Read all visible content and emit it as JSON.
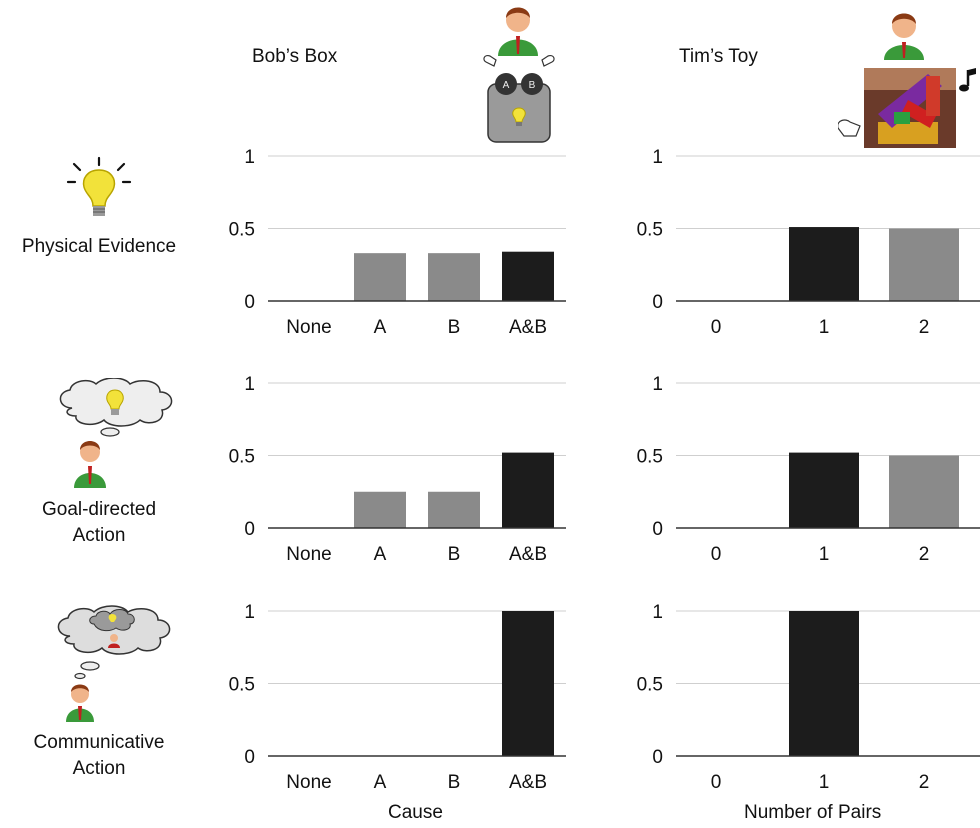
{
  "panels": {
    "left_title": "Bob’s Box",
    "right_title": "Tim’s Toy",
    "left_xlabel": "Cause",
    "right_xlabel": "Number of Pairs",
    "box_button_a": "A",
    "box_button_b": "B"
  },
  "rows": [
    {
      "label_lines": [
        "Physical Evidence"
      ],
      "icon": "lightbulb-icon"
    },
    {
      "label_lines": [
        "Goal-directed",
        "Action"
      ],
      "icon": "thought-bubble-person-icon"
    },
    {
      "label_lines": [
        "Communicative",
        "Action"
      ],
      "icon": "nested-thought-bubble-person-icon"
    }
  ],
  "colors": {
    "dark_bar": "#1c1c1c",
    "light_bar": "#8a8a8a",
    "gridline": "#cfcfcf",
    "bulb": "#f2e23a",
    "shirt": "#3a9a3a"
  },
  "chart_data": [
    {
      "type": "bar",
      "panel": "Bob’s Box",
      "row": "Physical Evidence",
      "categories": [
        "None",
        "A",
        "B",
        "A&B"
      ],
      "values": [
        0,
        0.33,
        0.33,
        0.34
      ],
      "bar_colors": [
        "light",
        "light",
        "light",
        "dark"
      ],
      "yticks": [
        "0",
        "0.5",
        "1"
      ],
      "ylim": [
        0,
        1
      ]
    },
    {
      "type": "bar",
      "panel": "Tim’s Toy",
      "row": "Physical Evidence",
      "categories": [
        "0",
        "1",
        "2"
      ],
      "values": [
        0,
        0.51,
        0.5
      ],
      "bar_colors": [
        "light",
        "dark",
        "light"
      ],
      "yticks": [
        "0",
        "0.5",
        "1"
      ],
      "ylim": [
        0,
        1
      ]
    },
    {
      "type": "bar",
      "panel": "Bob’s Box",
      "row": "Goal-directed Action",
      "categories": [
        "None",
        "A",
        "B",
        "A&B"
      ],
      "values": [
        0,
        0.25,
        0.25,
        0.52
      ],
      "bar_colors": [
        "light",
        "light",
        "light",
        "dark"
      ],
      "yticks": [
        "0",
        "0.5",
        "1"
      ],
      "ylim": [
        0,
        1
      ]
    },
    {
      "type": "bar",
      "panel": "Tim’s Toy",
      "row": "Goal-directed Action",
      "categories": [
        "0",
        "1",
        "2"
      ],
      "values": [
        0,
        0.52,
        0.5
      ],
      "bar_colors": [
        "light",
        "dark",
        "light"
      ],
      "yticks": [
        "0",
        "0.5",
        "1"
      ],
      "ylim": [
        0,
        1
      ]
    },
    {
      "type": "bar",
      "panel": "Bob’s Box",
      "row": "Communicative Action",
      "categories": [
        "None",
        "A",
        "B",
        "A&B"
      ],
      "values": [
        0,
        0,
        0,
        1
      ],
      "bar_colors": [
        "light",
        "light",
        "light",
        "dark"
      ],
      "yticks": [
        "0",
        "0.5",
        "1"
      ],
      "ylim": [
        0,
        1
      ]
    },
    {
      "type": "bar",
      "panel": "Tim’s Toy",
      "row": "Communicative Action",
      "categories": [
        "0",
        "1",
        "2"
      ],
      "values": [
        0,
        1,
        0
      ],
      "bar_colors": [
        "light",
        "dark",
        "light"
      ],
      "yticks": [
        "0",
        "0.5",
        "1"
      ],
      "ylim": [
        0,
        1
      ]
    }
  ]
}
